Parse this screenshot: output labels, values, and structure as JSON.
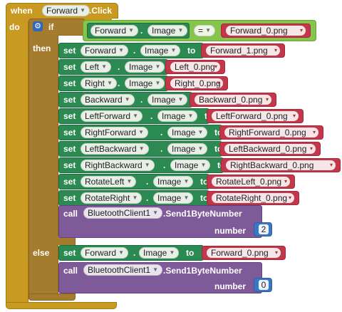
{
  "event": {
    "when": "when",
    "component": "Forward",
    "event_name": ".Click",
    "do": "do"
  },
  "if_block": {
    "label": "if",
    "then": "then",
    "else": "else"
  },
  "condition": {
    "component": "Forward",
    "dot": ".",
    "property": "Image",
    "operator": "=",
    "value": "Forward_0.png"
  },
  "setters": [
    {
      "set": "set",
      "component": "Forward",
      "dot": ".",
      "property": "Image",
      "to": "to",
      "value": "Forward_1.png"
    },
    {
      "set": "set",
      "component": "Left",
      "dot": ".",
      "property": "Image",
      "to": "to",
      "value": "Left_0.png"
    },
    {
      "set": "set",
      "component": "Right",
      "dot": ".",
      "property": "Image",
      "to": "to",
      "value": "Right_0.png"
    },
    {
      "set": "set",
      "component": "Backward",
      "dot": ".",
      "property": "Image",
      "to": "to",
      "value": "Backward_0.png"
    },
    {
      "set": "set",
      "component": "LeftForward",
      "dot": ".",
      "property": "Image",
      "to": "to",
      "value": "LeftForward_0.png"
    },
    {
      "set": "set",
      "component": "RightForward",
      "dot": ".",
      "property": "Image",
      "to": "to",
      "value": "RightForward_0.png"
    },
    {
      "set": "set",
      "component": "LeftBackward",
      "dot": ".",
      "property": "Image",
      "to": "to",
      "value": "LeftBackward_0.png"
    },
    {
      "set": "set",
      "component": "RightBackward",
      "dot": ".",
      "property": "Image",
      "to": "to",
      "value": "RightBackward_0.png"
    },
    {
      "set": "set",
      "component": "RotateLeft",
      "dot": ".",
      "property": "Image",
      "to": "to",
      "value": "RotateLeft_0.png"
    },
    {
      "set": "set",
      "component": "RotateRight",
      "dot": ".",
      "property": "Image",
      "to": "to",
      "value": "RotateRight_0.png"
    }
  ],
  "then_call": {
    "call": "call",
    "component": "BluetoothClient1",
    "method": ".Send1ByteNumber",
    "param": "number",
    "value": "2"
  },
  "else_setter": {
    "set": "set",
    "component": "Forward",
    "dot": ".",
    "property": "Image",
    "to": "to",
    "value": "Forward_0.png"
  },
  "else_call": {
    "call": "call",
    "component": "BluetoothClient1",
    "method": ".Send1ByteNumber",
    "param": "number",
    "value": "0"
  },
  "icons": {
    "dropdown": "chevron-down-icon",
    "gear": "gear-icon"
  },
  "colors": {
    "event": "#c99a22",
    "control": "#a57c2e",
    "logic": "#86c44d",
    "setter": "#2b8a52",
    "text": "#c2384a",
    "procedure": "#7f5a99",
    "number": "#3a76c4"
  }
}
